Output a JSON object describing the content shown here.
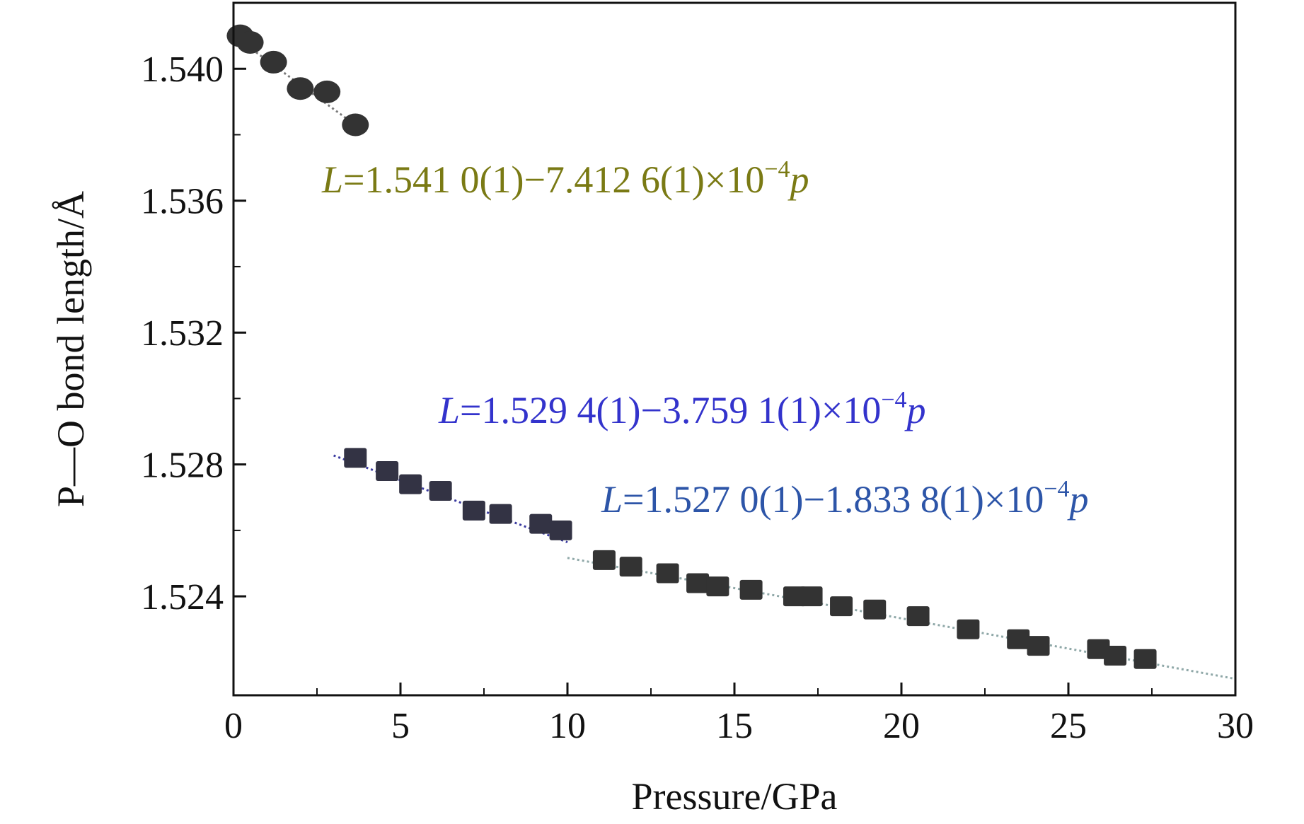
{
  "chart_data": {
    "type": "scatter",
    "xlabel": "Pressure/GPa",
    "ylabel": "P—O bond length/Å",
    "xlim": [
      0,
      30
    ],
    "ylim": [
      1.521,
      1.542
    ],
    "xticks": [
      0,
      5,
      10,
      15,
      20,
      25,
      30
    ],
    "yticks": [
      1.524,
      1.528,
      1.532,
      1.536,
      1.54
    ],
    "ytick_labels": [
      "1.524",
      "1.528",
      "1.532",
      "1.536",
      "1.540"
    ],
    "grid": false,
    "series": [
      {
        "marker": "circle",
        "color": "#333333",
        "fit_color": "#7a7a7a",
        "fit": {
          "intercept": 1.541,
          "slope": -0.00074126,
          "x_range": [
            0.2,
            3.7
          ]
        },
        "equation": {
          "prefix": "L",
          "body": "=1.541 0(1)−7.412 6(1)×10",
          "exponent": "−4",
          "suffix": "p",
          "color": "#7a7a14"
        },
        "points": [
          [
            0.2,
            1.541
          ],
          [
            0.5,
            1.5408
          ],
          [
            1.2,
            1.5402
          ],
          [
            2.0,
            1.5394
          ],
          [
            2.8,
            1.5393
          ],
          [
            3.65,
            1.5383
          ]
        ]
      },
      {
        "marker": "square",
        "color": "#333344",
        "fit_color": "#3a3aa0",
        "fit": {
          "intercept": 1.5294,
          "slope": -0.00037591,
          "x_range": [
            3.0,
            10.0
          ]
        },
        "equation": {
          "prefix": "L",
          "body": "=1.529 4(1)−3.759 1(1)×10",
          "exponent": "−4",
          "suffix": "p",
          "color": "#3333cc"
        },
        "points": [
          [
            3.65,
            1.5282
          ],
          [
            4.6,
            1.5278
          ],
          [
            5.3,
            1.5274
          ],
          [
            6.2,
            1.5272
          ],
          [
            7.2,
            1.5266
          ],
          [
            8.0,
            1.5265
          ],
          [
            9.2,
            1.5262
          ],
          [
            9.8,
            1.526
          ]
        ]
      },
      {
        "marker": "square",
        "color": "#333333",
        "fit_color": "#8fa8a8",
        "fit": {
          "intercept": 1.527,
          "slope": -0.00018338,
          "x_range": [
            10.0,
            30.0
          ]
        },
        "equation": {
          "prefix": "L",
          "body": "=1.527 0(1)−1.833 8(1)×10",
          "exponent": "−4",
          "suffix": "p",
          "color": "#2d55a8"
        },
        "points": [
          [
            11.1,
            1.5251
          ],
          [
            11.9,
            1.5249
          ],
          [
            13.0,
            1.5247
          ],
          [
            13.9,
            1.5244
          ],
          [
            14.5,
            1.5243
          ],
          [
            15.5,
            1.5242
          ],
          [
            16.8,
            1.524
          ],
          [
            17.3,
            1.524
          ],
          [
            18.2,
            1.5237
          ],
          [
            19.2,
            1.5236
          ],
          [
            20.5,
            1.5234
          ],
          [
            22.0,
            1.523
          ],
          [
            23.5,
            1.5227
          ],
          [
            24.1,
            1.5225
          ],
          [
            25.9,
            1.5224
          ],
          [
            26.4,
            1.5222
          ],
          [
            27.3,
            1.5221
          ]
        ]
      }
    ]
  }
}
